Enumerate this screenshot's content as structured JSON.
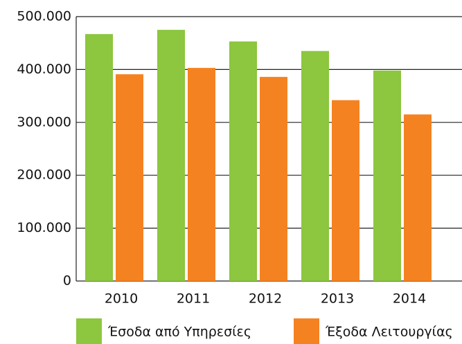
{
  "chart_data": {
    "type": "bar",
    "categories": [
      "2010",
      "2011",
      "2012",
      "2013",
      "2014"
    ],
    "series": [
      {
        "name": "Έσοδα από Υπηρεσίες",
        "color": "#8dc63f",
        "values": [
          467000,
          475000,
          453000,
          435000,
          398000
        ]
      },
      {
        "name": "Έξοδα Λειτουργίας",
        "color": "#f58220",
        "values": [
          391000,
          403000,
          386000,
          342000,
          315000
        ]
      }
    ],
    "ylim": [
      0,
      500000
    ],
    "yticks": [
      0,
      {
        "value": 100000,
        "label": "100.000"
      },
      {
        "value": 200000,
        "label": "200.000"
      },
      {
        "value": 300000,
        "label": "300.000"
      },
      {
        "value": 400000,
        "label": "400.000"
      },
      {
        "value": 500000,
        "label": "500.000"
      }
    ],
    "grid": true
  }
}
